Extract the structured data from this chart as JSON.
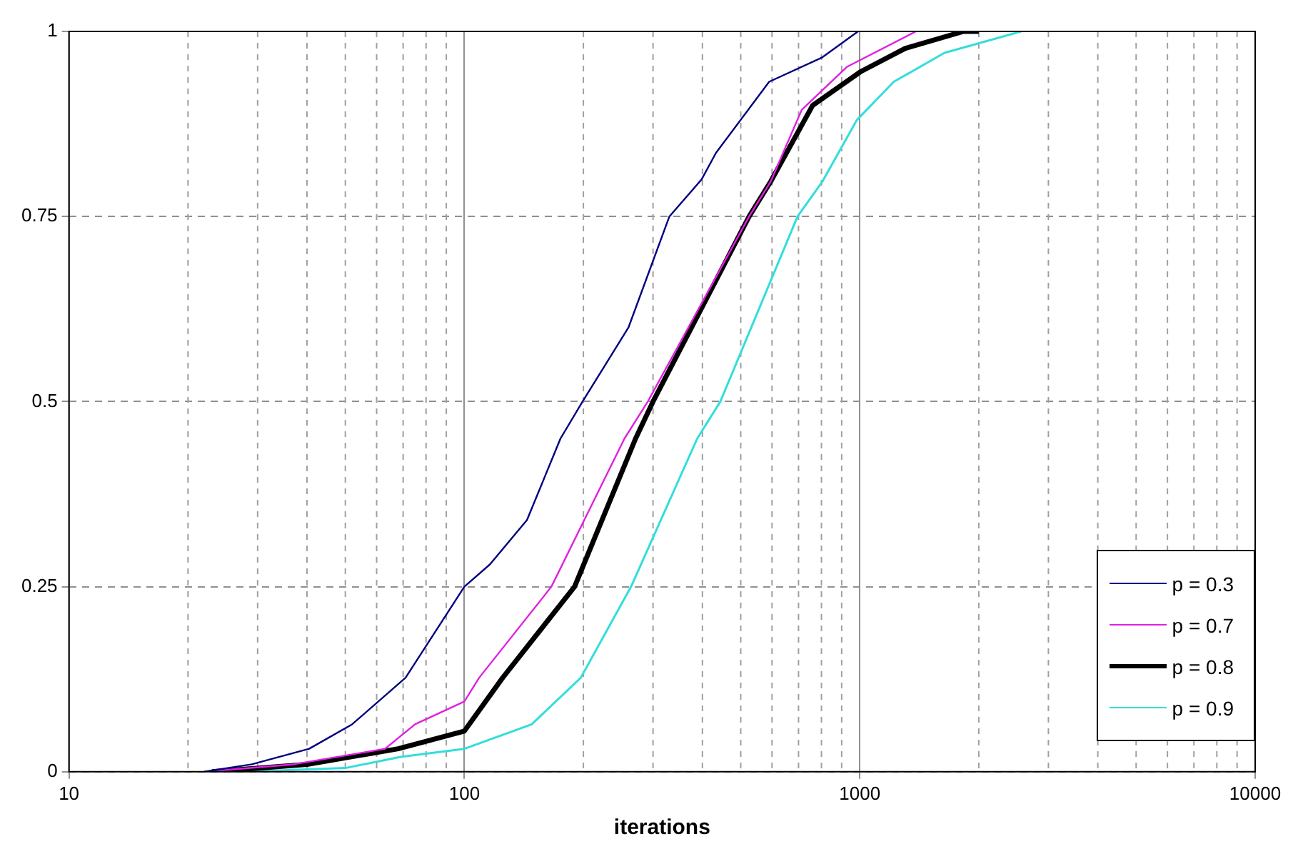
{
  "chart_data": {
    "type": "line",
    "xlabel": "iterations",
    "log": "x",
    "xlim": [
      10,
      10000
    ],
    "xticks": [
      10,
      100,
      1000,
      10000
    ],
    "ylim": [
      0,
      1
    ],
    "yticks": [
      0,
      0.25,
      0.5,
      0.75,
      1
    ],
    "grid": true,
    "legend": "bottom right",
    "marker": "none",
    "line_style": "solid",
    "series": [
      {
        "name": "p = 0.3",
        "color": "#000080",
        "x": [
          22,
          29,
          40.5,
          52,
          71,
          100,
          116,
          144,
          175,
          199,
          260,
          330,
          398,
          433,
          590,
          804,
          990
        ],
        "values": [
          0,
          0.01,
          0.031,
          0.064,
          0.127,
          0.25,
          0.28,
          0.34,
          0.45,
          0.5,
          0.6,
          0.75,
          0.8,
          0.836,
          0.932,
          0.965,
          1
        ]
      },
      {
        "name": "p = 0.7",
        "color": "#e020e0",
        "x": [
          22,
          37,
          63,
          75,
          100,
          109,
          166,
          254,
          291,
          525,
          595,
          713,
          927,
          1387
        ],
        "values": [
          0,
          0.01,
          0.031,
          0.064,
          0.095,
          0.127,
          0.25,
          0.45,
          0.5,
          0.75,
          0.797,
          0.894,
          0.952,
          1
        ]
      },
      {
        "name": "p = 0.8",
        "color": "#000000",
        "x": [
          23,
          40,
          68,
          100,
          125,
          190,
          271,
          300,
          525,
          595,
          760,
          1008,
          1302,
          1830,
          2000
        ],
        "values": [
          0,
          0.01,
          0.031,
          0.055,
          0.127,
          0.25,
          0.45,
          0.5,
          0.75,
          0.797,
          0.9,
          0.946,
          0.977,
          1,
          1
        ]
      },
      {
        "name": "p = 0.9",
        "color": "#33dddd",
        "x": [
          27.6,
          50,
          69,
          100,
          148,
          197,
          264,
          388,
          444,
          696,
          804,
          982,
          1219,
          1638,
          2560
        ],
        "values": [
          0,
          0.005,
          0.02,
          0.031,
          0.064,
          0.127,
          0.25,
          0.45,
          0.5,
          0.75,
          0.797,
          0.88,
          0.932,
          0.971,
          1
        ]
      }
    ]
  }
}
